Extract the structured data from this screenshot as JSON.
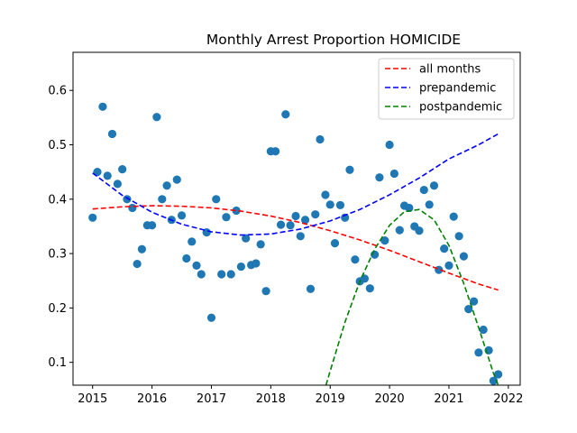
{
  "chart_data": {
    "type": "scatter",
    "title": "Monthly Arrest Proportion HOMICIDE",
    "xlabel": "",
    "ylabel": "",
    "xlim": [
      2014.67,
      2022.2
    ],
    "ylim": [
      0.058,
      0.67
    ],
    "x_ticks": [
      2015,
      2016,
      2017,
      2018,
      2019,
      2020,
      2021,
      2022
    ],
    "y_ticks": [
      0.1,
      0.2,
      0.3,
      0.4,
      0.5,
      0.6
    ],
    "x_tick_labels": [
      "2015",
      "2016",
      "2017",
      "2018",
      "2019",
      "2020",
      "2021",
      "2022"
    ],
    "y_tick_labels": [
      "0.1",
      "0.2",
      "0.3",
      "0.4",
      "0.5",
      "0.6"
    ],
    "grid": false,
    "legend_position": "top-right",
    "point_color": "#1f77b4",
    "points": [
      [
        2015.0,
        0.366
      ],
      [
        2015.08,
        0.45
      ],
      [
        2015.17,
        0.57
      ],
      [
        2015.25,
        0.443
      ],
      [
        2015.33,
        0.52
      ],
      [
        2015.42,
        0.428
      ],
      [
        2015.5,
        0.455
      ],
      [
        2015.58,
        0.4
      ],
      [
        2015.67,
        0.384
      ],
      [
        2015.75,
        0.281
      ],
      [
        2015.83,
        0.308
      ],
      [
        2015.92,
        0.352
      ],
      [
        2016.0,
        0.352
      ],
      [
        2016.08,
        0.551
      ],
      [
        2016.17,
        0.4
      ],
      [
        2016.25,
        0.425
      ],
      [
        2016.33,
        0.362
      ],
      [
        2016.42,
        0.436
      ],
      [
        2016.5,
        0.37
      ],
      [
        2016.58,
        0.291
      ],
      [
        2016.67,
        0.322
      ],
      [
        2016.75,
        0.278
      ],
      [
        2016.83,
        0.262
      ],
      [
        2016.92,
        0.339
      ],
      [
        2017.0,
        0.182
      ],
      [
        2017.08,
        0.4
      ],
      [
        2017.17,
        0.262
      ],
      [
        2017.25,
        0.367
      ],
      [
        2017.33,
        0.262
      ],
      [
        2017.42,
        0.379
      ],
      [
        2017.5,
        0.276
      ],
      [
        2017.58,
        0.328
      ],
      [
        2017.67,
        0.279
      ],
      [
        2017.75,
        0.282
      ],
      [
        2017.83,
        0.317
      ],
      [
        2017.92,
        0.231
      ],
      [
        2018.0,
        0.488
      ],
      [
        2018.08,
        0.488
      ],
      [
        2018.17,
        0.353
      ],
      [
        2018.25,
        0.556
      ],
      [
        2018.33,
        0.352
      ],
      [
        2018.42,
        0.369
      ],
      [
        2018.5,
        0.332
      ],
      [
        2018.58,
        0.362
      ],
      [
        2018.67,
        0.235
      ],
      [
        2018.75,
        0.372
      ],
      [
        2018.83,
        0.51
      ],
      [
        2018.92,
        0.408
      ],
      [
        2019.0,
        0.39
      ],
      [
        2019.08,
        0.319
      ],
      [
        2019.17,
        0.389
      ],
      [
        2019.25,
        0.366
      ],
      [
        2019.33,
        0.454
      ],
      [
        2019.42,
        0.289
      ],
      [
        2019.5,
        0.249
      ],
      [
        2019.58,
        0.254
      ],
      [
        2019.67,
        0.236
      ],
      [
        2019.75,
        0.298
      ],
      [
        2019.83,
        0.44
      ],
      [
        2019.92,
        0.324
      ],
      [
        2020.0,
        0.5
      ],
      [
        2020.08,
        0.447
      ],
      [
        2020.17,
        0.343
      ],
      [
        2020.25,
        0.388
      ],
      [
        2020.33,
        0.384
      ],
      [
        2020.42,
        0.35
      ],
      [
        2020.5,
        0.342
      ],
      [
        2020.58,
        0.417
      ],
      [
        2020.67,
        0.39
      ],
      [
        2020.75,
        0.425
      ],
      [
        2020.83,
        0.27
      ],
      [
        2020.92,
        0.309
      ],
      [
        2021.0,
        0.278
      ],
      [
        2021.08,
        0.368
      ],
      [
        2021.17,
        0.332
      ],
      [
        2021.25,
        0.295
      ],
      [
        2021.33,
        0.198
      ],
      [
        2021.42,
        0.212
      ],
      [
        2021.5,
        0.118
      ],
      [
        2021.58,
        0.16
      ],
      [
        2021.67,
        0.122
      ],
      [
        2021.75,
        0.066
      ],
      [
        2021.83,
        0.078
      ]
    ],
    "series": [
      {
        "name": "all months",
        "color": "#ff0000",
        "style": "dashed",
        "x": [
          2015.0,
          2015.5,
          2016.0,
          2016.5,
          2017.0,
          2017.5,
          2018.0,
          2018.5,
          2019.0,
          2019.5,
          2020.0,
          2020.5,
          2021.0,
          2021.5,
          2021.83
        ],
        "y": [
          0.382,
          0.386,
          0.388,
          0.387,
          0.384,
          0.378,
          0.369,
          0.357,
          0.342,
          0.325,
          0.306,
          0.285,
          0.264,
          0.244,
          0.233
        ]
      },
      {
        "name": "prepandemic",
        "color": "#0000ff",
        "style": "dashed",
        "x": [
          2015.0,
          2015.5,
          2016.0,
          2016.5,
          2017.0,
          2017.5,
          2018.0,
          2018.5,
          2019.0,
          2019.5,
          2020.0,
          2020.5,
          2021.0,
          2021.5,
          2021.83
        ],
        "y": [
          0.448,
          0.407,
          0.376,
          0.354,
          0.34,
          0.334,
          0.336,
          0.345,
          0.36,
          0.381,
          0.408,
          0.439,
          0.474,
          0.5,
          0.52
        ]
      },
      {
        "name": "postpandemic",
        "color": "#008000",
        "style": "dashed",
        "x": [
          2018.93,
          2019.0,
          2019.25,
          2019.5,
          2019.75,
          2020.0,
          2020.25,
          2020.5,
          2020.75,
          2021.0,
          2021.25,
          2021.5,
          2021.75,
          2021.83
        ],
        "y": [
          0.058,
          0.084,
          0.174,
          0.249,
          0.308,
          0.352,
          0.377,
          0.381,
          0.362,
          0.315,
          0.245,
          0.164,
          0.08,
          0.058
        ]
      }
    ]
  }
}
